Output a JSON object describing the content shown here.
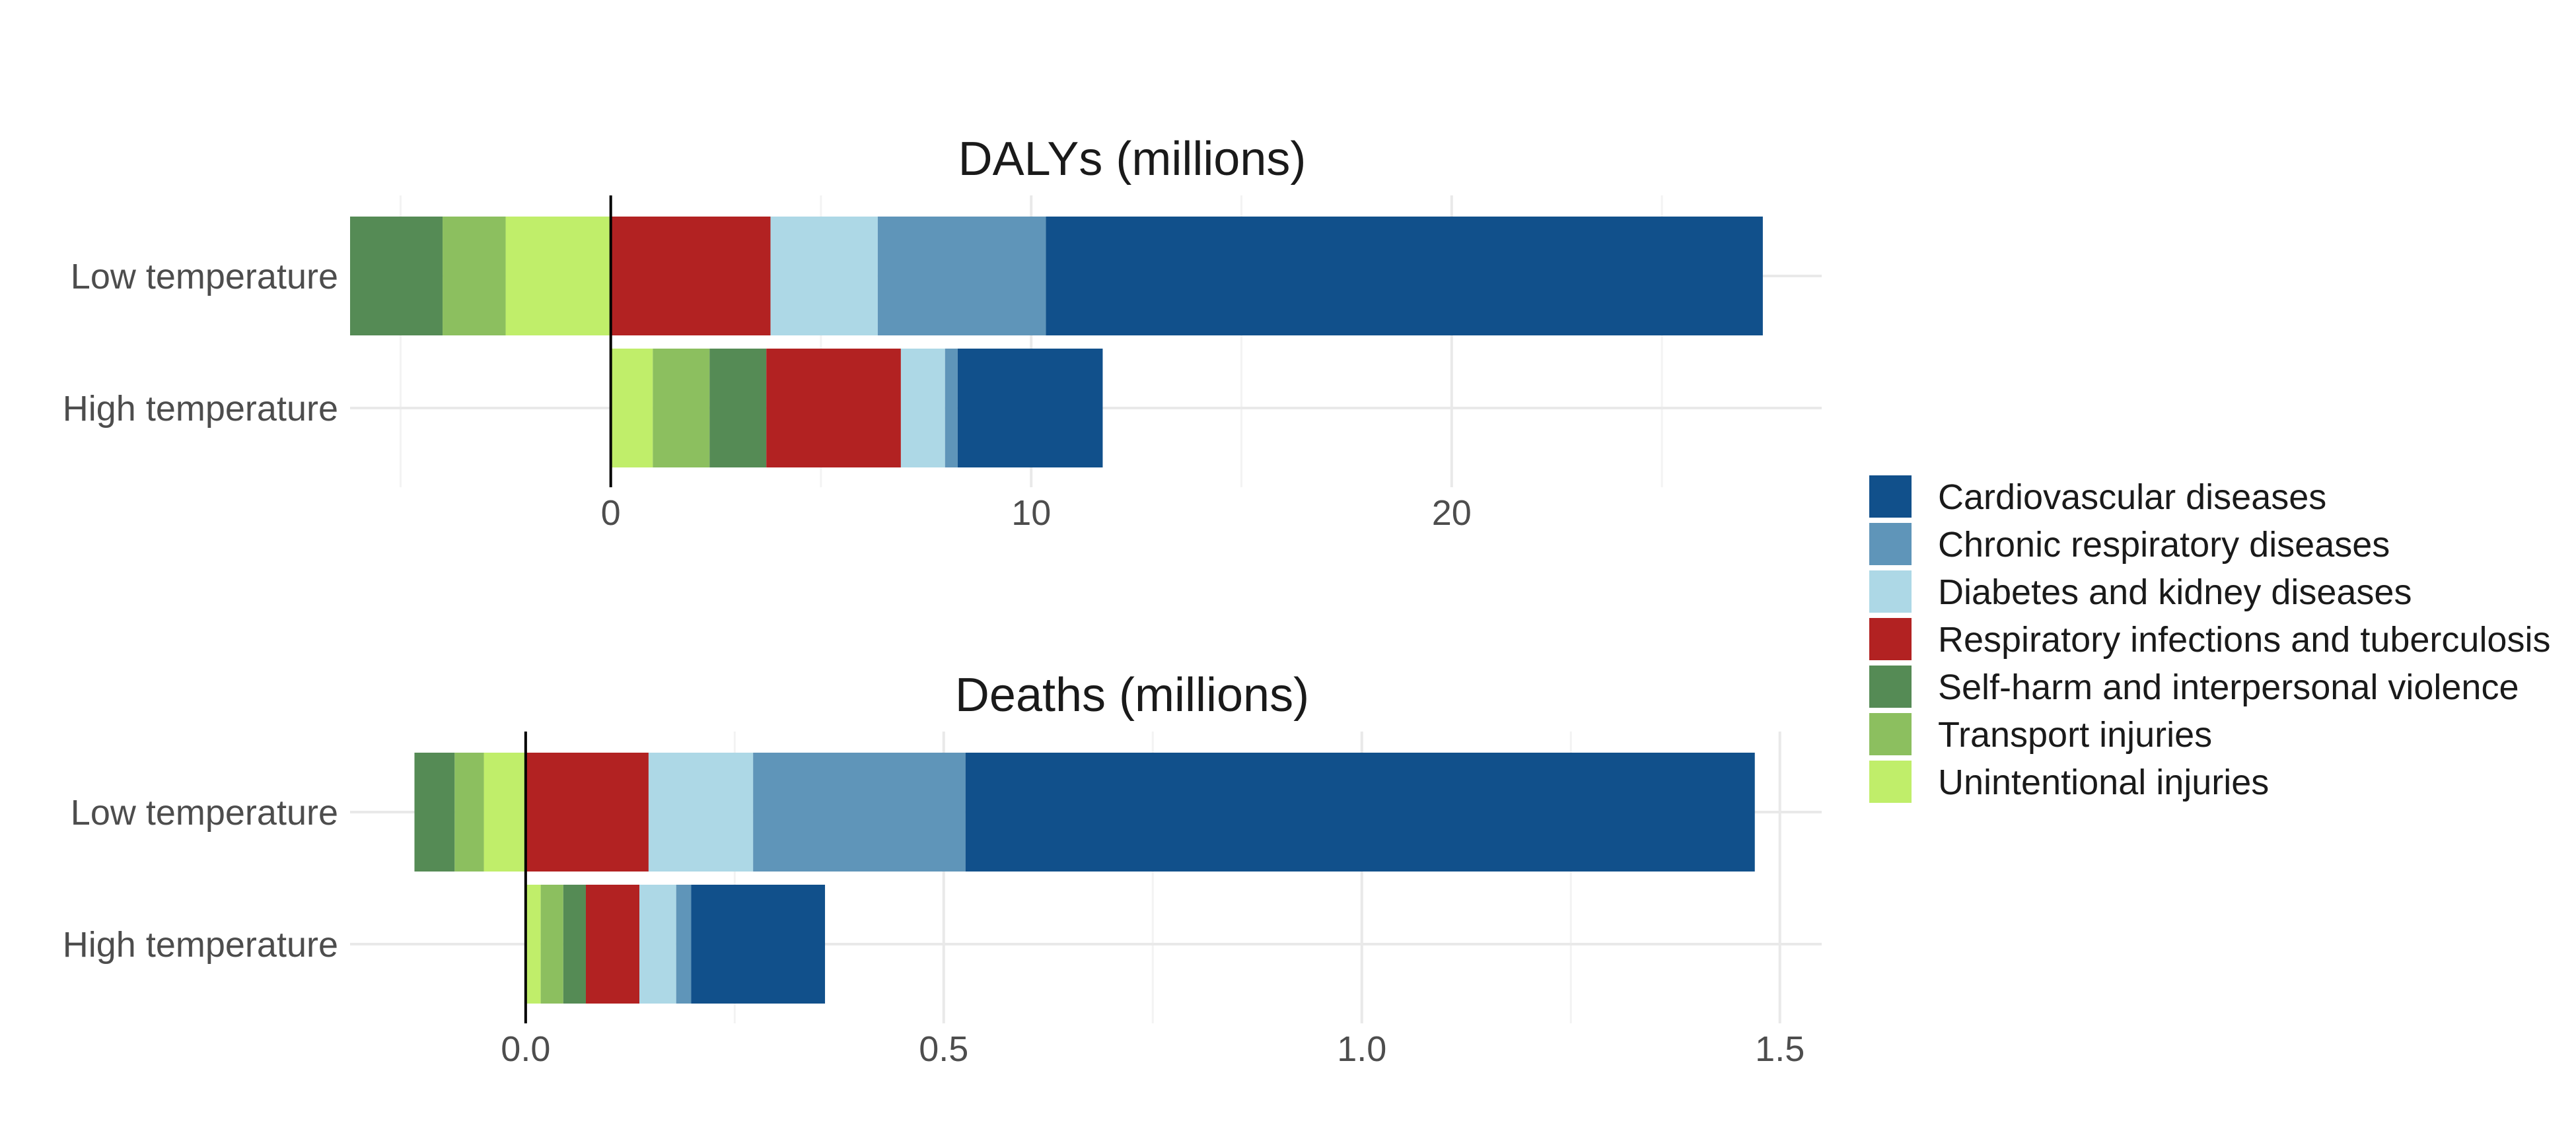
{
  "colors": {
    "Cardiovascular diseases": "#11508B",
    "Chronic respiratory diseases": "#5F95B9",
    "Diabetes and kidney diseases": "#ADD8E6",
    "Respiratory infections and tuberculosis": "#B22222",
    "Self-harm and interpersonal violence": "#558B55",
    "Transport injuries": "#8CBF5F",
    "Unintentional injuries": "#C0EE6A"
  },
  "legend": {
    "items": [
      "Cardiovascular diseases",
      "Chronic respiratory diseases",
      "Diabetes and kidney diseases",
      "Respiratory infections and tuberculosis",
      "Self-harm and interpersonal violence",
      "Transport injuries",
      "Unintentional injuries"
    ]
  },
  "chart_data": [
    {
      "type": "bar",
      "orientation": "horizontal",
      "stacked": true,
      "title": "DALYs (millions)",
      "xlabel": "",
      "ylabel": "",
      "xlim": [
        -6.2,
        28.8
      ],
      "xticks": [
        0,
        10,
        20
      ],
      "xtick_labels": [
        "0",
        "10",
        "20"
      ],
      "categories": [
        "Low temperature",
        "High temperature"
      ],
      "grid": true,
      "legend_position": "right",
      "positive_series": [
        {
          "name": "Respiratory infections and tuberculosis",
          "values": [
            3.8,
            3.2
          ]
        },
        {
          "name": "Diabetes and kidney diseases",
          "values": [
            2.55,
            1.05
          ]
        },
        {
          "name": "Chronic respiratory diseases",
          "values": [
            4.0,
            0.3
          ]
        },
        {
          "name": "Cardiovascular diseases",
          "values": [
            17.05,
            3.45
          ]
        }
      ],
      "negative_series": [
        {
          "name": "Unintentional injuries",
          "values": [
            -2.5,
            0
          ]
        },
        {
          "name": "Transport injuries",
          "values": [
            -1.5,
            0
          ]
        },
        {
          "name": "Self-harm and interpersonal violence",
          "values": [
            -2.2,
            0
          ]
        }
      ],
      "high_temperature_injury_series": [
        {
          "name": "Unintentional injuries",
          "value": 1.0
        },
        {
          "name": "Transport injuries",
          "value": 1.35
        },
        {
          "name": "Self-harm and interpersonal violence",
          "value": 1.35
        }
      ]
    },
    {
      "type": "bar",
      "orientation": "horizontal",
      "stacked": true,
      "title": "Deaths (millions)",
      "xlabel": "",
      "ylabel": "",
      "xlim": [
        -0.21,
        1.55
      ],
      "xticks": [
        0.0,
        0.5,
        1.0,
        1.5
      ],
      "xtick_labels": [
        "0.0",
        "0.5",
        "1.0",
        "1.5"
      ],
      "categories": [
        "Low temperature",
        "High temperature"
      ],
      "grid": true,
      "legend_position": "right",
      "positive_series": [
        {
          "name": "Respiratory infections and tuberculosis",
          "values": [
            0.147,
            0.064
          ]
        },
        {
          "name": "Diabetes and kidney diseases",
          "values": [
            0.125,
            0.044
          ]
        },
        {
          "name": "Chronic respiratory diseases",
          "values": [
            0.254,
            0.018
          ]
        },
        {
          "name": "Cardiovascular diseases",
          "values": [
            0.944,
            0.16
          ]
        }
      ],
      "negative_series": [
        {
          "name": "Unintentional injuries",
          "values": [
            -0.05,
            0
          ]
        },
        {
          "name": "Transport injuries",
          "values": [
            -0.035,
            0
          ]
        },
        {
          "name": "Self-harm and interpersonal violence",
          "values": [
            -0.048,
            0
          ]
        }
      ],
      "high_temperature_injury_series": [
        {
          "name": "Unintentional injuries",
          "value": 0.018
        },
        {
          "name": "Transport injuries",
          "value": 0.027
        },
        {
          "name": "Self-harm and interpersonal violence",
          "value": 0.027
        }
      ]
    }
  ]
}
